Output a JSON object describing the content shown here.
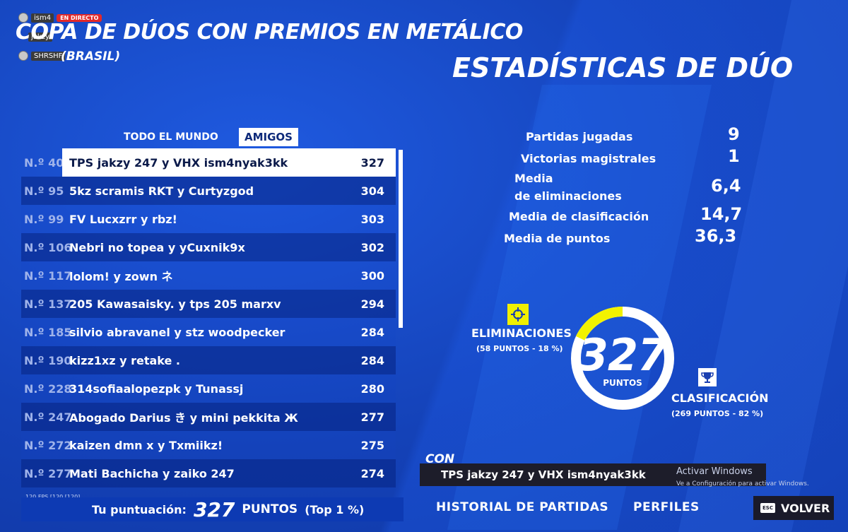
{
  "stream_overlay": {
    "users": [
      "ism4",
      "jakzy",
      "SHRSHF"
    ],
    "live_badge": "EN DIRECTO"
  },
  "header": {
    "title": "COPA DE DÚOS CON PREMIOS EN METÁLICO",
    "subtitle": "(BRASIL)",
    "stats_title": "ESTADÍSTICAS DE DÚO"
  },
  "tabs": {
    "world": "TODO EL MUNDO",
    "friends": "AMIGOS",
    "active": "friends"
  },
  "leaderboard": [
    {
      "rank": "N.º 40",
      "team": "TPS jakzy 247 y VHX ism4nyak3kk",
      "score": "327",
      "selected": true
    },
    {
      "rank": "N.º 95",
      "team": "5kz scramis RKT y Curtyzgod",
      "score": "304"
    },
    {
      "rank": "N.º 99",
      "team": "FV Lucxzrr y rbz!",
      "score": "303"
    },
    {
      "rank": "N.º 106",
      "team": "Nebri no topea y yCuxnik9x",
      "score": "302"
    },
    {
      "rank": "N.º 117",
      "team": "lolom! y zown ネ",
      "score": "300"
    },
    {
      "rank": "N.º 137",
      "team": "205 Kawasaisky. y tps 205 marxv",
      "score": "294"
    },
    {
      "rank": "N.º 185",
      "team": "silvio abravanel y stz woodpecker",
      "score": "284"
    },
    {
      "rank": "N.º 190",
      "team": "kizz1xz y retake .",
      "score": "284"
    },
    {
      "rank": "N.º 228",
      "team": "314sofiaalopezpk y Tunassj",
      "score": "280"
    },
    {
      "rank": "N.º 247",
      "team": "Abogado Darius き y mini pekkita Ж",
      "score": "277"
    },
    {
      "rank": "N.º 272",
      "team": "kaizen dmn x y Txmiikz!",
      "score": "275"
    },
    {
      "rank": "N.º 277",
      "team": "Mati Bachicha y zaiko 247",
      "score": "274"
    }
  ],
  "fps_overlay": "120 FPS [120 [120]",
  "score_bar": {
    "label": "Tu puntuación:",
    "value": "327",
    "unit": "PUNTOS",
    "top": "(Top 1 %)"
  },
  "stats": [
    {
      "label": "Partidas jugadas",
      "value": "9"
    },
    {
      "label": "Victorias magistrales",
      "value": "1"
    },
    {
      "label": "Media",
      "label2": "de eliminaciones",
      "value": "6,4"
    },
    {
      "label": "Media de clasificación",
      "value": "14,7"
    },
    {
      "label": "Media de puntos",
      "value": "36,3"
    }
  ],
  "points_breakdown": {
    "total": "327",
    "unit": "PUNTOS",
    "eliminations_title": "ELIMINACIONES",
    "eliminations_sub": "(58 PUNTOS - 18 %)",
    "eliminations_fraction": 0.18,
    "placement_title": "CLASIFICACIÓN",
    "placement_sub": "(269 PUNTOS - 82 %)",
    "placement_fraction": 0.82,
    "colors": {
      "eliminations": "#f2f200",
      "placement": "#ffffff"
    }
  },
  "partner": {
    "label": "CON",
    "team": "TPS jakzy 247 y VHX ism4nyak3kk"
  },
  "windows_watermark": {
    "title": "Activar Windows",
    "sub": "Ve a Configuración para activar Windows."
  },
  "bottom_nav": {
    "history": "HISTORIAL DE PARTIDAS",
    "profiles": "PERFILES",
    "back_key": "ESC",
    "back": "VOLVER"
  }
}
